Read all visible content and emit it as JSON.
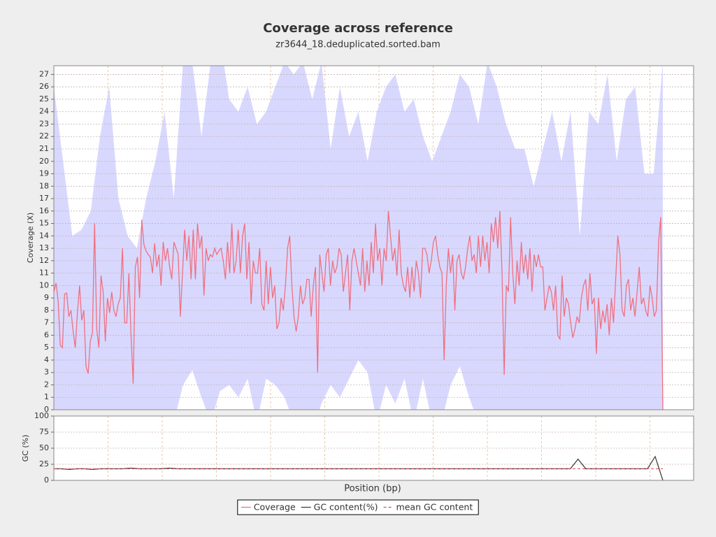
{
  "chart_data": {
    "type": "line",
    "title": "Coverage across reference",
    "subtitle": "zr3644_18.deduplicated.sorted.bam",
    "xlabel": "Position (bp)",
    "legend": "bottom",
    "panels": [
      {
        "ylabel": "Coverage (X)",
        "ylim": [
          0,
          27.7
        ],
        "yticks": [
          0,
          1,
          2,
          3,
          4,
          5,
          6,
          7,
          8,
          9,
          10,
          11,
          12,
          13,
          14,
          15,
          16,
          17,
          18,
          19,
          20,
          21,
          22,
          23,
          24,
          25,
          26,
          27
        ],
        "grid": true,
        "band": {
          "color": "#d8d8ff",
          "upper": [
            26,
            20,
            14,
            14.5,
            16,
            22,
            26,
            17,
            14,
            13,
            17,
            20,
            24,
            17,
            28,
            28,
            22,
            28,
            30,
            25,
            24,
            26,
            23,
            24,
            26,
            28,
            27,
            28,
            25,
            28,
            21,
            26,
            22,
            24,
            20,
            24,
            26,
            27,
            24,
            25,
            22,
            20,
            22,
            24,
            27,
            26,
            23,
            28,
            26,
            23,
            21,
            21,
            18,
            21,
            24,
            20,
            24,
            14,
            24,
            23,
            27,
            20,
            25,
            26,
            19,
            19,
            28
          ],
          "lower": [
            -2,
            -2,
            -2,
            -2,
            -2,
            -2,
            -2,
            -2,
            -2,
            -2,
            -2,
            -2,
            -2,
            -1,
            2,
            3.2,
            1,
            -1,
            1.5,
            2,
            1,
            2.5,
            -1,
            2.5,
            2,
            1,
            -1,
            -2,
            -2,
            0.5,
            2,
            1,
            2.5,
            4,
            3,
            -1,
            2,
            0.5,
            2.5,
            -1,
            2.5,
            -1,
            -1,
            2,
            3.5,
            1,
            -1,
            -2,
            -2,
            -1,
            -2,
            -2,
            -2,
            -2,
            -2,
            -2,
            -2,
            -2,
            -2,
            -2,
            -2,
            -2,
            -2,
            -2,
            -2,
            -2,
            0
          ]
        },
        "series": [
          {
            "name": "Coverage",
            "color": "#f07080",
            "values": [
              9.5,
              10.2,
              8.8,
              5.2,
              5,
              9.3,
              9.4,
              7.5,
              8,
              6.3,
              5,
              7.8,
              10,
              7.2,
              8,
              3.5,
              2.9,
              5.5,
              6.2,
              15,
              6.5,
              5,
              10.8,
              9.5,
              5.5,
              9,
              7.8,
              9.5,
              8,
              7.5,
              8.5,
              9,
              13,
              7,
              7,
              11,
              6,
              2.1,
              11.5,
              12.3,
              9,
              15.3,
              13.3,
              12.8,
              12.5,
              12.3,
              11,
              13.4,
              11.5,
              12.5,
              10,
              13.5,
              12,
              13,
              11.5,
              10.5,
              13.5,
              13,
              12.5,
              7.5,
              11,
              14.5,
              12,
              14,
              10.5,
              14.5,
              10.5,
              15,
              13,
              14,
              9.2,
              13,
              12,
              12.5,
              12.3,
              13,
              12.5,
              12.8,
              13,
              12,
              10.5,
              13.5,
              11,
              15,
              11,
              12,
              14.5,
              11,
              14,
              15,
              10.5,
              13.5,
              8.5,
              12,
              11,
              11,
              13,
              8.5,
              8,
              12,
              8.5,
              11.5,
              9,
              10,
              6.5,
              7,
              9,
              8,
              10,
              13,
              14,
              10,
              7.5,
              6.3,
              7.5,
              10,
              8.5,
              9,
              10.5,
              10.5,
              7.5,
              10,
              11.5,
              3,
              12.5,
              11,
              9.5,
              12.5,
              13,
              10,
              12,
              11,
              11.5,
              13,
              12.5,
              9.5,
              11,
              12.5,
              8,
              12,
              13,
              12,
              11,
              10,
              13,
              9.5,
              12,
              10,
              13.5,
              11,
              15,
              12,
              13,
              10,
              13,
              12,
              16,
              14,
              12,
              13,
              10.8,
              14.5,
              11,
              10,
              9.5,
              11.5,
              9,
              11.5,
              9.5,
              12,
              11,
              9,
              13,
              13,
              12.5,
              11,
              12,
              13.5,
              14,
              12.5,
              11.5,
              11,
              4,
              10,
              13,
              11,
              12.5,
              8,
              12,
              12.5,
              11,
              10.5,
              11.5,
              13,
              14,
              12,
              12.5,
              11,
              14,
              11.5,
              14,
              12,
              13.5,
              11,
              15,
              13.5,
              15.5,
              13,
              16,
              11,
              2.8,
              10,
              9.5,
              15.5,
              11,
              8.5,
              12,
              10,
              13.5,
              11,
              12.5,
              10.5,
              13,
              9.5,
              12.5,
              11.5,
              12.5,
              11.5,
              11.5,
              8,
              9,
              10,
              9.5,
              8,
              10,
              6,
              5.7,
              10.8,
              7.5,
              9,
              8.5,
              7,
              5.8,
              6.5,
              7.5,
              7,
              9,
              10,
              10.5,
              8,
              11,
              8.5,
              9,
              4.5,
              9,
              6.5,
              8,
              7,
              8.5,
              6,
              9,
              7,
              10.5,
              14,
              12.5,
              8,
              7.5,
              10,
              10.5,
              8,
              9,
              7.5,
              9.5,
              11.5,
              8.5,
              9,
              8,
              7.5,
              10,
              9,
              7.5,
              8,
              13.5,
              15.5,
              0
            ]
          }
        ]
      },
      {
        "ylabel": "GC (%)",
        "ylim": [
          0,
          100
        ],
        "yticks": [
          0,
          25,
          50,
          75,
          100
        ],
        "grid": true,
        "series": [
          {
            "name": "GC content(%)",
            "color": "#404040",
            "values": [
              18,
              18,
              17,
              18,
              18,
              17,
              18,
              18,
              18,
              18,
              19,
              18,
              18,
              18,
              18,
              19,
              18,
              18,
              18,
              18,
              18,
              18,
              18,
              18,
              18,
              18,
              18,
              18,
              18,
              18,
              18,
              18,
              18,
              18,
              18,
              18,
              18,
              18,
              18,
              18,
              18,
              18,
              18,
              18,
              18,
              18,
              18,
              18,
              18,
              18,
              18,
              18,
              18,
              18,
              18,
              18,
              18,
              18,
              18,
              18,
              18,
              18,
              18,
              18,
              18,
              18,
              18,
              18,
              33,
              18,
              18,
              18,
              18,
              18,
              18,
              18,
              18,
              18,
              37,
              0
            ]
          },
          {
            "name": "mean GC content",
            "color": "#e04858",
            "value": 18
          }
        ]
      }
    ]
  }
}
